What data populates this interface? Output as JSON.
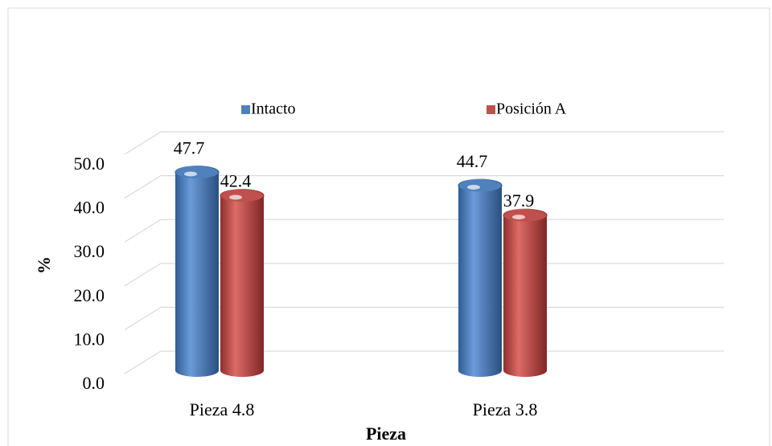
{
  "chart_data": {
    "type": "bar3d",
    "categories": [
      "Pieza 4.8",
      "Pieza 3.8"
    ],
    "series": [
      {
        "name": "Intacto",
        "color": "#4f81bd",
        "values": [
          47.7,
          44.7
        ]
      },
      {
        "name": "Posición A",
        "color": "#c0504d",
        "values": [
          42.4,
          37.9
        ]
      }
    ],
    "xlabel": "Pieza",
    "ylabel": "%",
    "ylim": [
      0,
      50
    ],
    "yticks": [
      {
        "value": 0,
        "label": "0.0"
      },
      {
        "value": 10,
        "label": "10.0"
      },
      {
        "value": 20,
        "label": "20.0"
      },
      {
        "value": 30,
        "label": "30.0"
      },
      {
        "value": 40,
        "label": "40.0"
      },
      {
        "value": 50,
        "label": "50.0"
      }
    ],
    "grid": true,
    "legend": "top"
  }
}
